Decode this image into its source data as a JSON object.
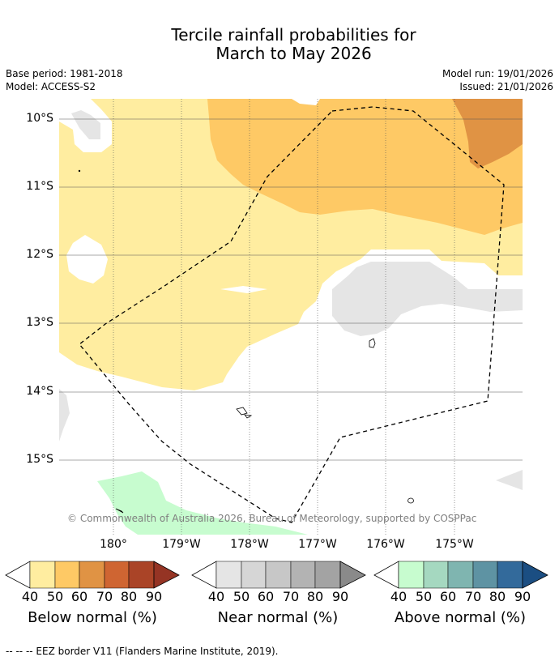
{
  "title": {
    "line1": "Tercile rainfall probabilities for",
    "line2": "March to May 2026"
  },
  "meta": {
    "base_period": "Base period: 1981-2018",
    "model": "Model: ACCESS-S2",
    "model_run": "Model run: 19/01/2026",
    "issued": "Issued: 21/01/2026"
  },
  "axes": {
    "lat_labels": [
      "10°S",
      "11°S",
      "12°S",
      "13°S",
      "14°S",
      "15°S"
    ],
    "lon_labels": [
      "180°",
      "179°W",
      "178°W",
      "177°W",
      "176°W",
      "175°W"
    ]
  },
  "copyright": "© Commonwealth of Australia 2026, Bureau of Meteorology, supported by COSPPac",
  "colorbars": [
    {
      "name": "below",
      "title": "Below normal (%)",
      "ticks": [
        "40",
        "50",
        "60",
        "70",
        "80",
        "90"
      ],
      "colors": [
        "#ffeda0",
        "#fec965",
        "#e09344",
        "#cf6532",
        "#aa4427",
        "#953424"
      ]
    },
    {
      "name": "near",
      "title": "Near normal (%)",
      "ticks": [
        "40",
        "50",
        "60",
        "70",
        "80",
        "90"
      ],
      "colors": [
        "#e5e5e5",
        "#d6d6d6",
        "#c7c7c7",
        "#b3b3b3",
        "#a3a3a3",
        "#8a8a8a"
      ]
    },
    {
      "name": "above",
      "title": "Above normal (%)",
      "ticks": [
        "40",
        "50",
        "60",
        "70",
        "80",
        "90"
      ],
      "colors": [
        "#c7fccf",
        "#a5d8c0",
        "#7fb5b0",
        "#5e93a3",
        "#336a9b",
        "#1b4e82"
      ]
    }
  ],
  "footer": "--  --  -- EEZ border V11 (Flanders Marine Institute, 2019)."
}
